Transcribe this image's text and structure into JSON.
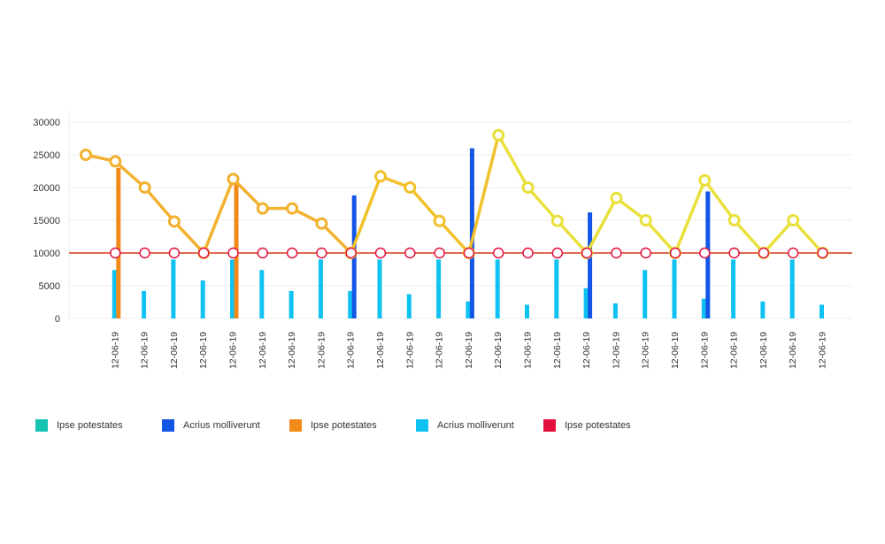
{
  "chart_data": {
    "type": "bar",
    "categories": [
      "",
      "12-06-19",
      "12-06-19",
      "12-06-19",
      "12-06-19",
      "12-06-19",
      "12-06-19",
      "12-06-19",
      "12-06-19",
      "12-06-19",
      "12-06-19",
      "12-06-19",
      "12-06-19",
      "12-06-19",
      "12-06-19",
      "12-06-19",
      "12-06-19",
      "12-06-19",
      "12-06-19",
      "12-06-19",
      "12-06-19",
      "12-06-19",
      "12-06-19",
      "12-06-19",
      "12-06-19",
      "12-06-19"
    ],
    "ylim": [
      0,
      30000
    ],
    "yticks": [
      0,
      5000,
      10000,
      15000,
      20000,
      25000,
      30000
    ],
    "grid": true,
    "legend_position": "bottom-left",
    "series": [
      {
        "name": "Ipse potestates",
        "type": "bar",
        "color": "#17c3b2",
        "values": [
          null,
          null,
          null,
          null,
          null,
          null,
          null,
          null,
          null,
          null,
          null,
          null,
          null,
          null,
          null,
          null,
          null,
          null,
          null,
          null,
          null,
          null,
          null,
          null,
          null,
          null
        ]
      },
      {
        "name": "Acrius molliverunt",
        "type": "bar",
        "color": "#1356e6",
        "values": [
          null,
          null,
          null,
          null,
          null,
          null,
          null,
          null,
          null,
          18800,
          null,
          null,
          null,
          26000,
          null,
          null,
          null,
          16200,
          null,
          null,
          null,
          19400,
          null,
          null,
          null,
          null
        ]
      },
      {
        "name": "Ipse potestates",
        "type": "bar",
        "color": "#f28a1a",
        "values": [
          null,
          23000,
          null,
          null,
          null,
          20700,
          null,
          null,
          null,
          null,
          null,
          null,
          null,
          null,
          null,
          null,
          null,
          null,
          null,
          null,
          null,
          null,
          null,
          null,
          null,
          null
        ]
      },
      {
        "name": "Acrius molliverunt",
        "type": "bar",
        "color": "#0fc2f2",
        "values": [
          null,
          7400,
          4200,
          9000,
          5800,
          9000,
          7400,
          4200,
          9000,
          4200,
          9000,
          3700,
          9000,
          2600,
          9000,
          2100,
          9000,
          4600,
          2300,
          7400,
          9000,
          3000,
          9000,
          2600,
          9000,
          2100
        ]
      },
      {
        "name": "Ipse potestates",
        "type": "line",
        "color": "#e3103e",
        "line_color": "#d9361b",
        "values": [
          null,
          10000,
          10000,
          10000,
          10000,
          10000,
          10000,
          10000,
          10000,
          10000,
          10000,
          10000,
          10000,
          10000,
          10000,
          10000,
          10000,
          10000,
          10000,
          10000,
          10000,
          10000,
          10000,
          10000,
          10000,
          10000
        ]
      },
      {
        "name": "",
        "type": "line",
        "color": "#f2c12a",
        "values": [
          25000,
          24000,
          20000,
          14800,
          10000,
          21300,
          16800,
          16800,
          14500,
          10000,
          21700,
          20000,
          14900,
          10000,
          28000,
          20000,
          14900,
          10000,
          18400,
          15000,
          10000,
          21100,
          15000,
          10000,
          15000,
          10000
        ]
      }
    ]
  }
}
